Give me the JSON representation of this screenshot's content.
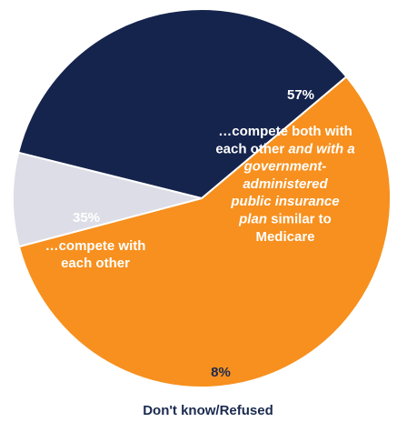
{
  "chart_data": {
    "type": "pie",
    "slices": [
      {
        "value": 57,
        "value_label": "57%",
        "label_lines": [
          [
            {
              "t": "…compete both with",
              "i": false
            }
          ],
          [
            {
              "t": "each other ",
              "i": false
            },
            {
              "t": "and with a",
              "i": true
            }
          ],
          [
            {
              "t": "government-",
              "i": true
            }
          ],
          [
            {
              "t": "administered",
              "i": true
            }
          ],
          [
            {
              "t": "public insurance",
              "i": true
            }
          ],
          [
            {
              "t": "plan",
              "i": true
            },
            {
              "t": " similar to",
              "i": false
            }
          ],
          [
            {
              "t": "Medicare",
              "i": false
            }
          ]
        ],
        "color": "#f7901e"
      },
      {
        "value": 8,
        "value_label": "8%",
        "label_lines": [
          [
            {
              "t": "Don't know/Refused",
              "i": false
            }
          ]
        ],
        "color": "#dcdde6"
      },
      {
        "value": 35,
        "value_label": "35%",
        "label_lines": [
          [
            {
              "t": "…compete with",
              "i": false
            }
          ],
          [
            {
              "t": "each other",
              "i": false
            }
          ]
        ],
        "color": "#15244d"
      }
    ],
    "start_angle_deg": -40,
    "direction": "clockwise"
  }
}
